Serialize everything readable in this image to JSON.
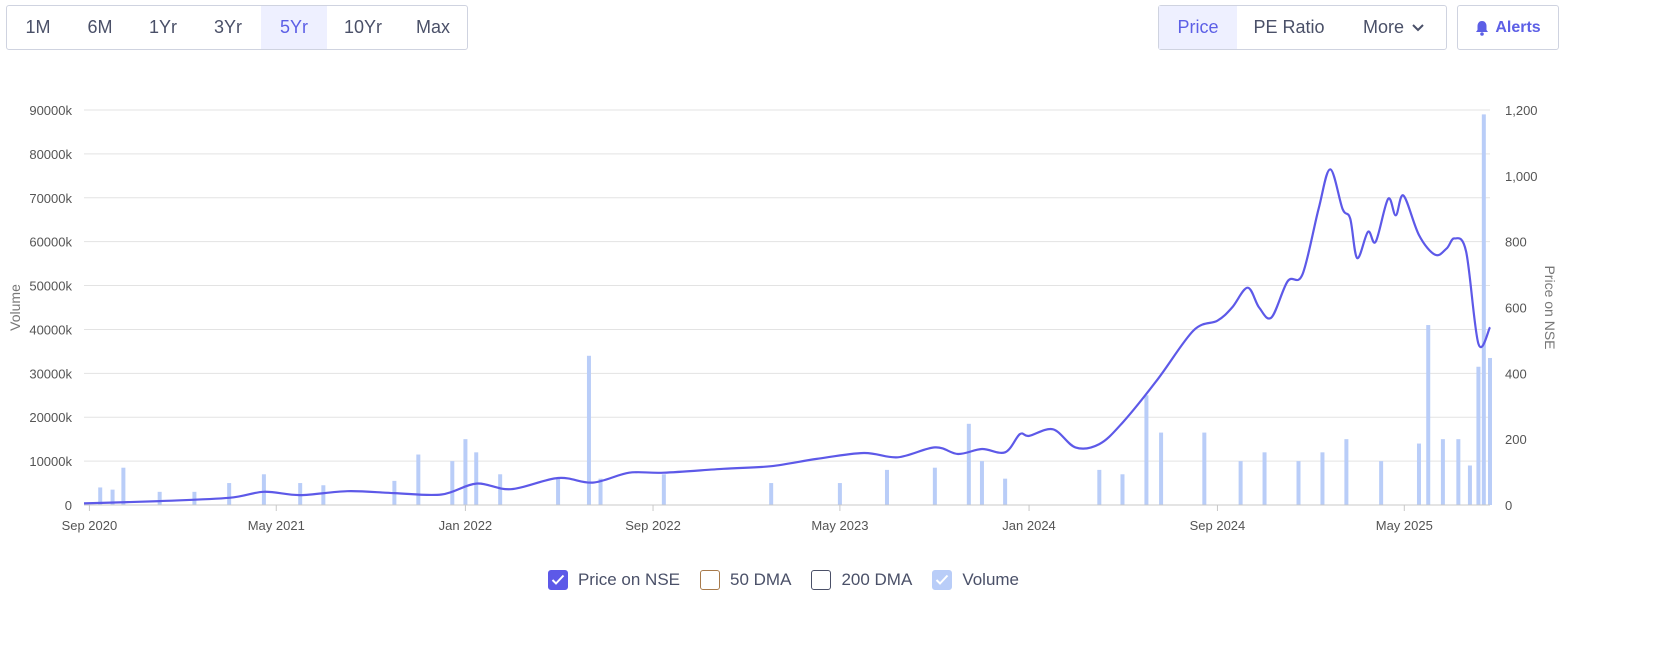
{
  "range_buttons": [
    {
      "label": "1M",
      "active": false
    },
    {
      "label": "6M",
      "active": false
    },
    {
      "label": "1Yr",
      "active": false
    },
    {
      "label": "3Yr",
      "active": false
    },
    {
      "label": "5Yr",
      "active": true
    },
    {
      "label": "10Yr",
      "active": false
    },
    {
      "label": "Max",
      "active": false
    }
  ],
  "type_buttons": {
    "price": "Price",
    "pe": "PE Ratio",
    "more": "More"
  },
  "alerts_label": "Alerts",
  "legend": {
    "price": {
      "label": "Price on NSE",
      "checked": true,
      "color": "#5d59e8"
    },
    "dma50": {
      "label": "50 DMA",
      "checked": false,
      "color": "#a87a4b"
    },
    "dma200": {
      "label": "200 DMA",
      "checked": false,
      "color": "#4a5068"
    },
    "volume": {
      "label": "Volume",
      "checked": true,
      "color": "#b9cdf8"
    }
  },
  "chart_data": {
    "type": "line+bar",
    "x_ticks": [
      "Sep 2020",
      "May 2021",
      "Jan 2022",
      "Sep 2022",
      "May 2023",
      "Jan 2024",
      "Sep 2024",
      "May 2025"
    ],
    "x_tick_dates": [
      "2020-09-01",
      "2021-05-01",
      "2022-01-01",
      "2022-09-01",
      "2023-05-01",
      "2024-01-01",
      "2024-09-01",
      "2025-05-01"
    ],
    "x_range": [
      "2020-08-25",
      "2025-08-20"
    ],
    "left_axis": {
      "label": "Volume",
      "ticks": [
        "0",
        "10000k",
        "20000k",
        "30000k",
        "40000k",
        "50000k",
        "60000k",
        "70000k",
        "80000k",
        "90000k"
      ],
      "range_k": [
        0,
        90000
      ]
    },
    "right_axis": {
      "label": "Price on NSE",
      "ticks": [
        "0",
        "200",
        "400",
        "600",
        "800",
        "1,000",
        "1,200"
      ],
      "range": [
        0,
        1200
      ]
    },
    "price_series": {
      "name": "Price on NSE",
      "points": [
        [
          "2020-08-25",
          5
        ],
        [
          "2020-12-01",
          12
        ],
        [
          "2021-03-01",
          22
        ],
        [
          "2021-04-15",
          40
        ],
        [
          "2021-06-01",
          30
        ],
        [
          "2021-08-01",
          42
        ],
        [
          "2021-10-01",
          36
        ],
        [
          "2021-12-01",
          32
        ],
        [
          "2022-01-15",
          65
        ],
        [
          "2022-03-01",
          48
        ],
        [
          "2022-05-01",
          82
        ],
        [
          "2022-06-15",
          68
        ],
        [
          "2022-08-01",
          98
        ],
        [
          "2022-09-15",
          98
        ],
        [
          "2022-12-01",
          110
        ],
        [
          "2023-02-01",
          118
        ],
        [
          "2023-04-01",
          140
        ],
        [
          "2023-06-01",
          158
        ],
        [
          "2023-07-15",
          145
        ],
        [
          "2023-09-01",
          175
        ],
        [
          "2023-10-01",
          155
        ],
        [
          "2023-11-01",
          170
        ],
        [
          "2023-12-01",
          160
        ],
        [
          "2023-12-20",
          215
        ],
        [
          "2024-01-01",
          210
        ],
        [
          "2024-02-01",
          230
        ],
        [
          "2024-03-01",
          175
        ],
        [
          "2024-04-01",
          185
        ],
        [
          "2024-05-01",
          250
        ],
        [
          "2024-06-15",
          380
        ],
        [
          "2024-08-01",
          530
        ],
        [
          "2024-09-01",
          560
        ],
        [
          "2024-09-20",
          600
        ],
        [
          "2024-10-10",
          660
        ],
        [
          "2024-10-25",
          600
        ],
        [
          "2024-11-10",
          570
        ],
        [
          "2024-12-01",
          680
        ],
        [
          "2024-12-20",
          700
        ],
        [
          "2025-01-10",
          900
        ],
        [
          "2025-01-25",
          1020
        ],
        [
          "2025-02-10",
          900
        ],
        [
          "2025-02-20",
          870
        ],
        [
          "2025-03-01",
          750
        ],
        [
          "2025-03-15",
          830
        ],
        [
          "2025-03-25",
          800
        ],
        [
          "2025-04-10",
          930
        ],
        [
          "2025-04-20",
          880
        ],
        [
          "2025-04-30",
          940
        ],
        [
          "2025-05-20",
          820
        ],
        [
          "2025-06-10",
          760
        ],
        [
          "2025-06-25",
          780
        ],
        [
          "2025-07-05",
          810
        ],
        [
          "2025-07-20",
          770
        ],
        [
          "2025-08-05",
          490
        ],
        [
          "2025-08-20",
          540
        ]
      ]
    },
    "volume_series": {
      "name": "Volume",
      "unit": "k",
      "points": [
        [
          "2020-09-15",
          4000
        ],
        [
          "2020-10-01",
          3500
        ],
        [
          "2020-10-15",
          8500
        ],
        [
          "2020-12-01",
          3000
        ],
        [
          "2021-01-15",
          3000
        ],
        [
          "2021-03-01",
          5000
        ],
        [
          "2021-04-15",
          7000
        ],
        [
          "2021-06-01",
          5000
        ],
        [
          "2021-07-01",
          4500
        ],
        [
          "2021-10-01",
          5500
        ],
        [
          "2021-11-01",
          11500
        ],
        [
          "2021-12-15",
          10000
        ],
        [
          "2022-01-01",
          15000
        ],
        [
          "2022-01-15",
          12000
        ],
        [
          "2022-02-15",
          7000
        ],
        [
          "2022-05-01",
          6000
        ],
        [
          "2022-06-10",
          34000
        ],
        [
          "2022-06-25",
          6000
        ],
        [
          "2022-09-15",
          7000
        ],
        [
          "2023-02-01",
          5000
        ],
        [
          "2023-05-01",
          5000
        ],
        [
          "2023-07-01",
          8000
        ],
        [
          "2023-09-01",
          8500
        ],
        [
          "2023-10-15",
          18500
        ],
        [
          "2023-11-01",
          10000
        ],
        [
          "2023-12-01",
          6000
        ],
        [
          "2024-04-01",
          8000
        ],
        [
          "2024-05-01",
          7000
        ],
        [
          "2024-06-01",
          25000
        ],
        [
          "2024-06-20",
          16500
        ],
        [
          "2024-08-15",
          16500
        ],
        [
          "2024-10-01",
          10000
        ],
        [
          "2024-11-01",
          12000
        ],
        [
          "2024-12-15",
          10000
        ],
        [
          "2025-01-15",
          12000
        ],
        [
          "2025-02-15",
          15000
        ],
        [
          "2025-04-01",
          10000
        ],
        [
          "2025-05-20",
          14000
        ],
        [
          "2025-06-01",
          41000
        ],
        [
          "2025-06-20",
          15000
        ],
        [
          "2025-07-10",
          15000
        ],
        [
          "2025-07-25",
          9000
        ],
        [
          "2025-08-05",
          31500
        ],
        [
          "2025-08-12",
          89000
        ],
        [
          "2025-08-20",
          33500
        ]
      ]
    }
  }
}
